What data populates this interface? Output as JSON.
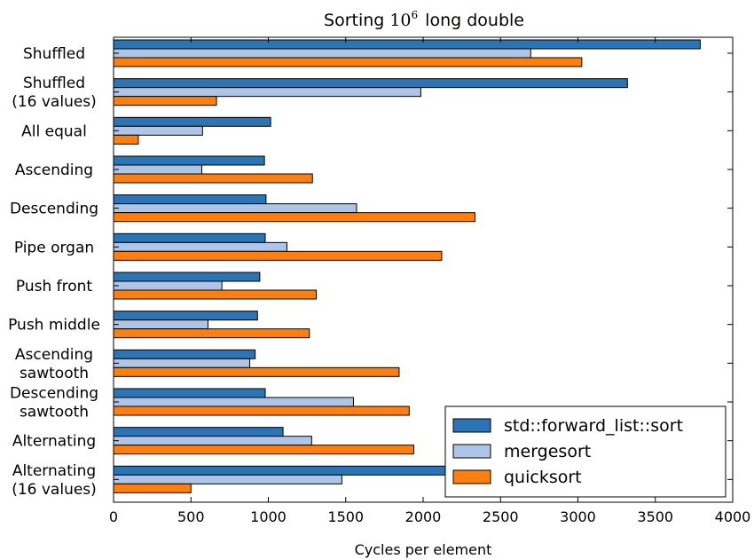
{
  "chart_data": {
    "type": "bar",
    "orientation": "horizontal",
    "title_prefix": "Sorting",
    "title_base": "10",
    "title_exponent": "6",
    "title_suffix": "long double",
    "xlabel": "Cycles per element",
    "ylabel": "",
    "xlim": [
      0,
      4000
    ],
    "xticks": [
      "0",
      "500",
      "1000",
      "1500",
      "2000",
      "2500",
      "3000",
      "3500",
      "4000"
    ],
    "grid": false,
    "legend_position": "lower-right",
    "categories": [
      [
        "Shuffled"
      ],
      [
        "Shuffled",
        "(16 values)"
      ],
      [
        "All equal"
      ],
      [
        "Ascending"
      ],
      [
        "Descending"
      ],
      [
        "Pipe organ"
      ],
      [
        "Push front"
      ],
      [
        "Push middle"
      ],
      [
        "Ascending",
        "sawtooth"
      ],
      [
        "Descending",
        "sawtooth"
      ],
      [
        "Alternating"
      ],
      [
        "Alternating",
        "(16 values)"
      ]
    ],
    "series": [
      {
        "name": "std::forward_list::sort",
        "color": "#2b74b5",
        "values": [
          3790,
          3320,
          1015,
          975,
          985,
          980,
          945,
          930,
          915,
          980,
          1095,
          3000
        ]
      },
      {
        "name": "mergesort",
        "color": "#aec5e7",
        "values": [
          2695,
          1985,
          575,
          570,
          1570,
          1120,
          700,
          610,
          880,
          1550,
          1280,
          1475
        ]
      },
      {
        "name": "quicksort",
        "color": "#ff7f0e",
        "values": [
          3025,
          665,
          160,
          1285,
          2335,
          2120,
          1310,
          1265,
          1845,
          1910,
          1940,
          500
        ]
      }
    ]
  }
}
